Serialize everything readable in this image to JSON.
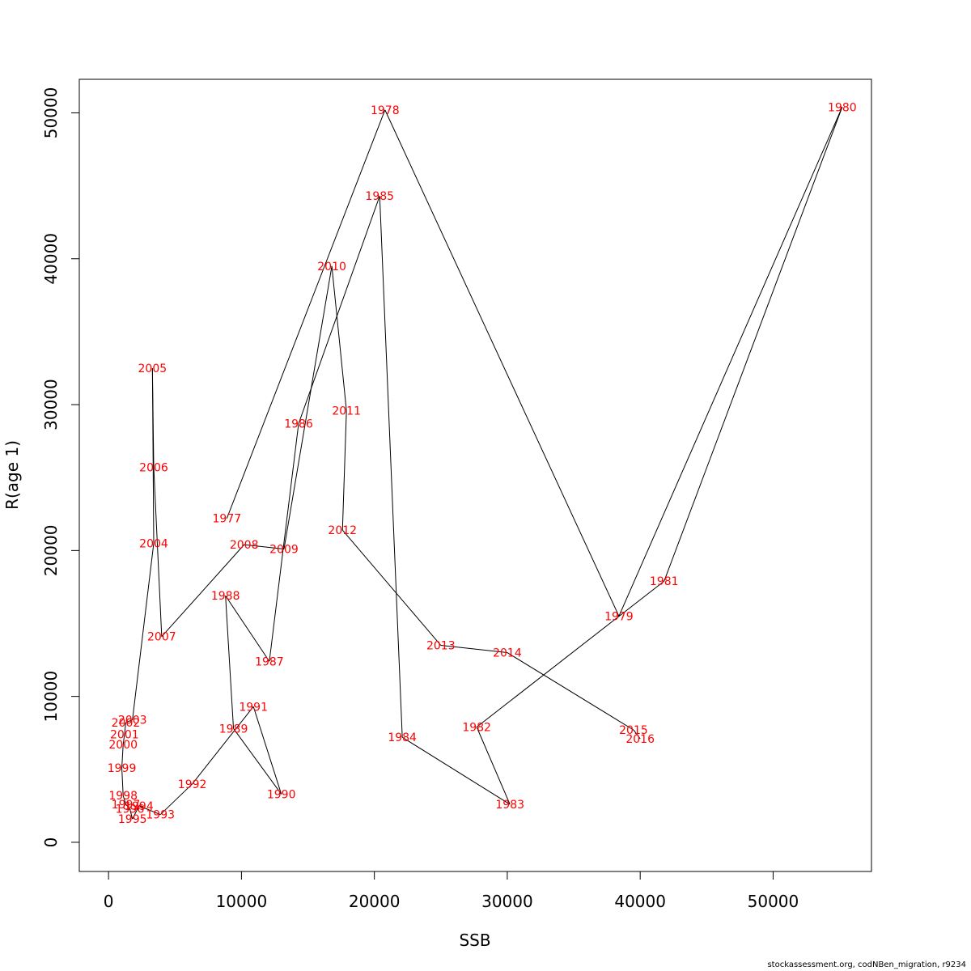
{
  "chart_data": {
    "type": "line",
    "title": "",
    "xlabel": "SSB",
    "ylabel": "R(age 1)",
    "xlim": [
      -2200,
      57400
    ],
    "ylim": [
      -2000,
      52300
    ],
    "x_ticks": [
      0,
      10000,
      20000,
      30000,
      40000,
      50000
    ],
    "y_ticks": [
      0,
      10000,
      20000,
      30000,
      40000,
      50000
    ],
    "grid": false,
    "legend": "none",
    "line_color": "#000000",
    "label_color": "#ff0000",
    "points": [
      {
        "year": "1977",
        "x": 8900,
        "y": 22200
      },
      {
        "year": "1978",
        "x": 20800,
        "y": 50200
      },
      {
        "year": "1979",
        "x": 38400,
        "y": 15500
      },
      {
        "year": "1980",
        "x": 55200,
        "y": 50400
      },
      {
        "year": "1981",
        "x": 41800,
        "y": 17900
      },
      {
        "year": "1982",
        "x": 27700,
        "y": 7900
      },
      {
        "year": "1983",
        "x": 30200,
        "y": 2600
      },
      {
        "year": "1984",
        "x": 22100,
        "y": 7200
      },
      {
        "year": "1985",
        "x": 20400,
        "y": 44300
      },
      {
        "year": "1986",
        "x": 14300,
        "y": 28700
      },
      {
        "year": "1987",
        "x": 12100,
        "y": 12400
      },
      {
        "year": "1988",
        "x": 8800,
        "y": 16900
      },
      {
        "year": "1989",
        "x": 9400,
        "y": 7800
      },
      {
        "year": "1990",
        "x": 13000,
        "y": 3300
      },
      {
        "year": "1991",
        "x": 10900,
        "y": 9300
      },
      {
        "year": "1992",
        "x": 6300,
        "y": 4000
      },
      {
        "year": "1993",
        "x": 3900,
        "y": 1900
      },
      {
        "year": "1994",
        "x": 2300,
        "y": 2500
      },
      {
        "year": "1995",
        "x": 1800,
        "y": 1600
      },
      {
        "year": "1996",
        "x": 1600,
        "y": 2300
      },
      {
        "year": "1997",
        "x": 1300,
        "y": 2600
      },
      {
        "year": "1998",
        "x": 1100,
        "y": 3200
      },
      {
        "year": "1999",
        "x": 1000,
        "y": 5100
      },
      {
        "year": "2000",
        "x": 1100,
        "y": 6700
      },
      {
        "year": "2001",
        "x": 1200,
        "y": 7400
      },
      {
        "year": "2002",
        "x": 1300,
        "y": 8200
      },
      {
        "year": "2003",
        "x": 1800,
        "y": 8400
      },
      {
        "year": "2004",
        "x": 3400,
        "y": 20500
      },
      {
        "year": "2005",
        "x": 3300,
        "y": 32500
      },
      {
        "year": "2006",
        "x": 3400,
        "y": 25700
      },
      {
        "year": "2007",
        "x": 4000,
        "y": 14100
      },
      {
        "year": "2008",
        "x": 10200,
        "y": 20400
      },
      {
        "year": "2009",
        "x": 13200,
        "y": 20100
      },
      {
        "year": "2010",
        "x": 16800,
        "y": 39500
      },
      {
        "year": "2011",
        "x": 17900,
        "y": 29600
      },
      {
        "year": "2012",
        "x": 17600,
        "y": 21400
      },
      {
        "year": "2013",
        "x": 25000,
        "y": 13500
      },
      {
        "year": "2014",
        "x": 30000,
        "y": 13000
      },
      {
        "year": "2015",
        "x": 39500,
        "y": 7700
      },
      {
        "year": "2016",
        "x": 40000,
        "y": 7100
      }
    ]
  },
  "footer": {
    "caption": "stockassessment.org, codNBen_migration, r9234"
  }
}
